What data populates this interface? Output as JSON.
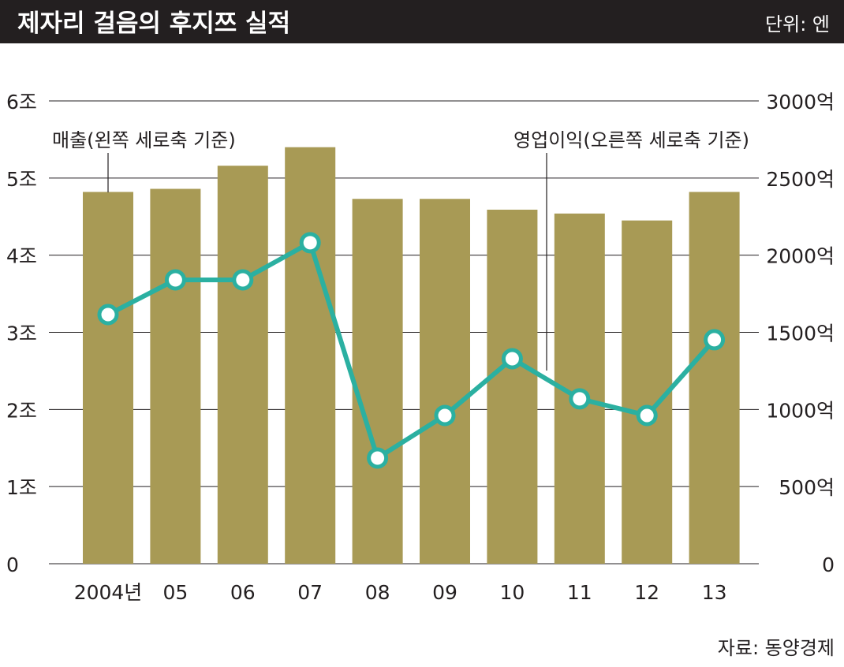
{
  "header": {
    "title": "제자리 걸음의 후지쯔 실적",
    "unit": "단위: 엔"
  },
  "source": "자료: 동양경제",
  "colors": {
    "header_bg": "#231f20",
    "bar": "#a89a55",
    "line": "#2bb0a1",
    "grid": "#231f20"
  },
  "chart_data": {
    "type": "bar+line",
    "title": "제자리 걸음의 후지쯔 실적",
    "categories": [
      "2004년",
      "05",
      "06",
      "07",
      "08",
      "09",
      "10",
      "11",
      "12",
      "13"
    ],
    "series": [
      {
        "name": "매출(왼쪽 세로축 기준)",
        "type": "bar",
        "axis": "left",
        "values": [
          4.82,
          4.86,
          5.16,
          5.4,
          4.73,
          4.73,
          4.59,
          4.54,
          4.45,
          4.82
        ]
      },
      {
        "name": "영업이익(오른쪽 세로축 기준)",
        "type": "line",
        "axis": "right",
        "values": [
          1615,
          1840,
          1840,
          2081,
          685,
          961,
          1329,
          1069,
          961,
          1452
        ]
      }
    ],
    "left_axis": {
      "ylim": [
        0,
        6
      ],
      "ticks": [
        "0",
        "1조",
        "2조",
        "3조",
        "4조",
        "5조",
        "6조"
      ]
    },
    "right_axis": {
      "ylim": [
        0,
        3000
      ],
      "ticks": [
        "0",
        "500억",
        "1000억",
        "1500억",
        "2000억",
        "2500억",
        "3000억"
      ]
    },
    "grid": true
  }
}
